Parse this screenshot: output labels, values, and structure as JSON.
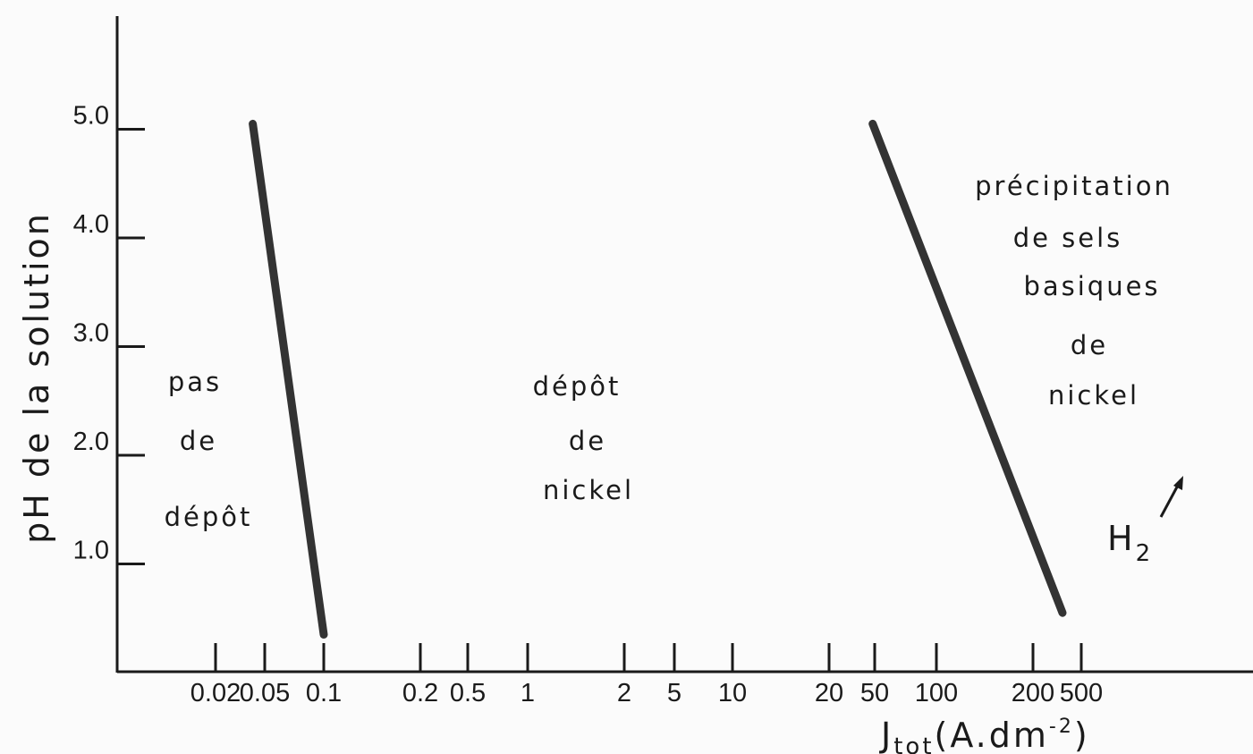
{
  "chart_data": {
    "type": "line",
    "xlabel": "J",
    "xlabel_sub": "tot",
    "xlabel_units_open": "(A.dm",
    "xlabel_units_exp": "-2",
    "xlabel_units_close": ")",
    "ylabel": "pH de la solution",
    "x_tick_labels": [
      "0.02",
      "0.05",
      "0.1",
      "0.2",
      "0.5",
      "1",
      "2",
      "5",
      "10",
      "20",
      "50",
      "100",
      "200",
      "500"
    ],
    "y_ticks": [
      {
        "value": 1.0,
        "label": "1.0"
      },
      {
        "value": 2.0,
        "label": "2.0"
      },
      {
        "value": 3.0,
        "label": "3.0"
      },
      {
        "value": 4.0,
        "label": "4.0"
      },
      {
        "value": 5.0,
        "label": "5.0"
      }
    ],
    "ylim": [
      0,
      6
    ],
    "series": [
      {
        "points": [
          {
            "x": 0.04,
            "y": 5.05
          },
          {
            "x": 0.1,
            "y": 0.35
          }
        ]
      },
      {
        "points": [
          {
            "x": 48,
            "y": 5.05
          },
          {
            "x": 350,
            "y": 0.55
          }
        ]
      }
    ],
    "regions": [
      {
        "lines": [
          "pas",
          "de",
          "dépôt"
        ]
      },
      {
        "lines": [
          "dépôt",
          "de",
          "nickel"
        ]
      },
      {
        "lines": [
          "précipitation",
          "de sels",
          "basiques",
          "de",
          "nickel"
        ]
      }
    ],
    "annotations": [
      {
        "text": "H",
        "subscript": "2"
      }
    ]
  }
}
